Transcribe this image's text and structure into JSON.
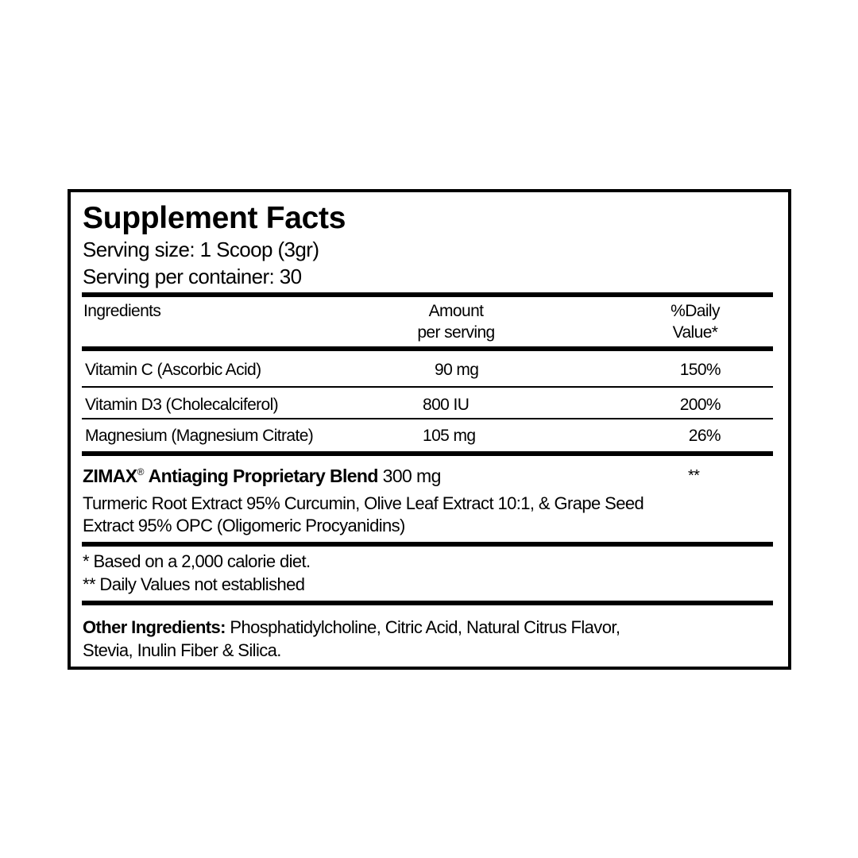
{
  "title": "Supplement Facts",
  "serving_size": "Serving size: 1 Scoop (3gr)",
  "servings_per_container": "Serving per container: 30",
  "headers": {
    "ingredients": "Ingredients",
    "amount_line1": "Amount",
    "amount_line2": "per serving",
    "dv_line1": "%Daily",
    "dv_line2": "Value*"
  },
  "rows": [
    {
      "name": "Vitamin C (Ascorbic Acid)",
      "amount": "90 mg",
      "dv": "150%"
    },
    {
      "name": "Vitamin D3 (Cholecalciferol)",
      "amount": "800 IU",
      "dv": "200%"
    },
    {
      "name": "Magnesium (Magnesium Citrate)",
      "amount": "105 mg",
      "dv": "26%"
    }
  ],
  "blend": {
    "brand": "ZIMAX",
    "registered": "®",
    "name": "Antiaging Proprietary Blend",
    "amount": "300 mg",
    "dv": "**",
    "description_line1": "Turmeric Root Extract 95% Curcumin, Olive Leaf Extract 10:1, & Grape Seed",
    "description_line2": "Extract 95% OPC (Oligomeric Procyanidins)"
  },
  "footnotes": [
    "* Based on a 2,000 calorie diet.",
    "** Daily Values not established"
  ],
  "other_ingredients": {
    "label": "Other Ingredients:",
    "line1": "Phosphatidylcholine, Citric Acid, Natural Citrus Flavor,",
    "line2": "Stevia, Inulin Fiber & Silica."
  }
}
